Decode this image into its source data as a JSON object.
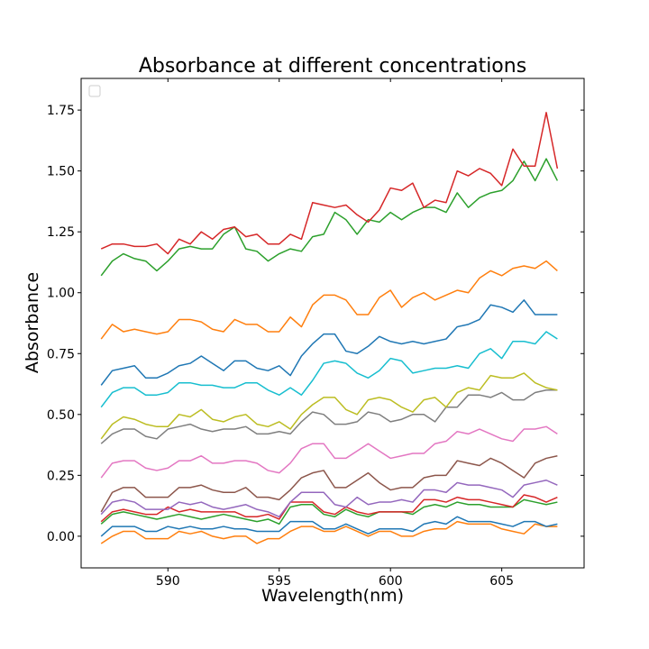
{
  "chart_data": {
    "type": "line",
    "title": "Absorbance at different concentrations",
    "xlabel": "Wavelength(nm)",
    "ylabel": "Absorbance",
    "xlim": [
      586.1,
      608.7
    ],
    "ylim": [
      -0.13,
      1.88
    ],
    "xticks": [
      590,
      595,
      600,
      605
    ],
    "yticks": [
      0.0,
      0.25,
      0.5,
      0.75,
      1.0,
      1.25,
      1.5,
      1.75
    ],
    "ytick_labels": [
      "0.00",
      "0.25",
      "0.50",
      "0.75",
      "1.00",
      "1.25",
      "1.50",
      "1.75"
    ],
    "legend": "top-left",
    "grid": false,
    "x": [
      587,
      587.5,
      588,
      588.5,
      589,
      589.5,
      590,
      590.5,
      591,
      591.5,
      592,
      592.5,
      593,
      593.5,
      594,
      594.5,
      595,
      595.5,
      596,
      596.5,
      597,
      597.5,
      598,
      598.5,
      599,
      599.5,
      600,
      600.5,
      601,
      601.5,
      602,
      602.5,
      603,
      603.5,
      604,
      604.5,
      605,
      605.5,
      606,
      606.5,
      607,
      607.5
    ],
    "series": [
      {
        "color": "#ff7f0e",
        "values": [
          -0.03,
          0.0,
          0.02,
          0.02,
          -0.01,
          -0.01,
          -0.01,
          0.02,
          0.01,
          0.02,
          0.0,
          -0.01,
          0.0,
          0.0,
          -0.03,
          -0.01,
          -0.01,
          0.02,
          0.04,
          0.04,
          0.02,
          0.02,
          0.04,
          0.02,
          0.0,
          0.02,
          0.02,
          0.0,
          0.0,
          0.02,
          0.03,
          0.03,
          0.06,
          0.05,
          0.05,
          0.05,
          0.03,
          0.02,
          0.01,
          0.05,
          0.04,
          0.04
        ]
      },
      {
        "color": "#1f77b4",
        "values": [
          0.0,
          0.04,
          0.04,
          0.04,
          0.02,
          0.02,
          0.04,
          0.03,
          0.04,
          0.03,
          0.03,
          0.04,
          0.03,
          0.03,
          0.02,
          0.02,
          0.02,
          0.06,
          0.06,
          0.06,
          0.03,
          0.03,
          0.05,
          0.03,
          0.01,
          0.03,
          0.03,
          0.03,
          0.02,
          0.05,
          0.06,
          0.05,
          0.08,
          0.06,
          0.06,
          0.06,
          0.05,
          0.04,
          0.06,
          0.06,
          0.04,
          0.05
        ]
      },
      {
        "color": "#2ca02c",
        "values": [
          0.05,
          0.09,
          0.1,
          0.09,
          0.08,
          0.07,
          0.08,
          0.09,
          0.08,
          0.07,
          0.08,
          0.09,
          0.08,
          0.07,
          0.06,
          0.07,
          0.05,
          0.12,
          0.13,
          0.13,
          0.09,
          0.08,
          0.11,
          0.09,
          0.08,
          0.1,
          0.1,
          0.1,
          0.09,
          0.12,
          0.13,
          0.12,
          0.14,
          0.13,
          0.13,
          0.12,
          0.12,
          0.12,
          0.15,
          0.14,
          0.13,
          0.14
        ]
      },
      {
        "color": "#d62728",
        "values": [
          0.06,
          0.1,
          0.11,
          0.1,
          0.09,
          0.09,
          0.12,
          0.1,
          0.11,
          0.1,
          0.1,
          0.1,
          0.1,
          0.08,
          0.08,
          0.09,
          0.07,
          0.14,
          0.14,
          0.14,
          0.1,
          0.09,
          0.12,
          0.1,
          0.09,
          0.1,
          0.1,
          0.1,
          0.1,
          0.15,
          0.15,
          0.14,
          0.16,
          0.15,
          0.15,
          0.14,
          0.13,
          0.12,
          0.17,
          0.16,
          0.14,
          0.16
        ]
      },
      {
        "color": "#9467bd",
        "values": [
          0.09,
          0.14,
          0.15,
          0.14,
          0.11,
          0.11,
          0.11,
          0.14,
          0.13,
          0.14,
          0.12,
          0.11,
          0.12,
          0.13,
          0.11,
          0.1,
          0.08,
          0.14,
          0.18,
          0.18,
          0.18,
          0.13,
          0.12,
          0.16,
          0.13,
          0.14,
          0.14,
          0.15,
          0.14,
          0.19,
          0.19,
          0.18,
          0.22,
          0.21,
          0.21,
          0.2,
          0.19,
          0.16,
          0.21,
          0.22,
          0.23,
          0.21
        ]
      },
      {
        "color": "#8c564b",
        "values": [
          0.1,
          0.18,
          0.2,
          0.2,
          0.16,
          0.16,
          0.16,
          0.2,
          0.2,
          0.21,
          0.19,
          0.18,
          0.18,
          0.2,
          0.16,
          0.16,
          0.15,
          0.19,
          0.24,
          0.26,
          0.27,
          0.2,
          0.2,
          0.23,
          0.26,
          0.22,
          0.19,
          0.2,
          0.2,
          0.24,
          0.25,
          0.25,
          0.31,
          0.3,
          0.29,
          0.32,
          0.3,
          0.27,
          0.24,
          0.3,
          0.32,
          0.33
        ]
      },
      {
        "color": "#e377c2",
        "values": [
          0.24,
          0.3,
          0.31,
          0.31,
          0.28,
          0.27,
          0.28,
          0.31,
          0.31,
          0.33,
          0.3,
          0.3,
          0.31,
          0.31,
          0.3,
          0.27,
          0.26,
          0.3,
          0.36,
          0.38,
          0.38,
          0.32,
          0.32,
          0.35,
          0.38,
          0.35,
          0.32,
          0.33,
          0.34,
          0.34,
          0.38,
          0.39,
          0.43,
          0.42,
          0.44,
          0.42,
          0.4,
          0.39,
          0.44,
          0.44,
          0.45,
          0.42
        ]
      },
      {
        "color": "#7f7f7f",
        "values": [
          0.38,
          0.42,
          0.44,
          0.44,
          0.41,
          0.4,
          0.44,
          0.45,
          0.46,
          0.44,
          0.43,
          0.44,
          0.44,
          0.45,
          0.42,
          0.42,
          0.43,
          0.42,
          0.47,
          0.51,
          0.5,
          0.46,
          0.46,
          0.47,
          0.51,
          0.5,
          0.47,
          0.48,
          0.5,
          0.5,
          0.47,
          0.53,
          0.53,
          0.58,
          0.58,
          0.57,
          0.59,
          0.56,
          0.56,
          0.59,
          0.6,
          0.6
        ]
      },
      {
        "color": "#bcbd22",
        "values": [
          0.4,
          0.46,
          0.49,
          0.48,
          0.46,
          0.45,
          0.45,
          0.5,
          0.49,
          0.52,
          0.48,
          0.47,
          0.49,
          0.5,
          0.46,
          0.45,
          0.47,
          0.44,
          0.5,
          0.54,
          0.57,
          0.57,
          0.52,
          0.5,
          0.56,
          0.57,
          0.56,
          0.53,
          0.51,
          0.56,
          0.57,
          0.53,
          0.59,
          0.61,
          0.6,
          0.66,
          0.65,
          0.65,
          0.67,
          0.63,
          0.61,
          0.6
        ]
      },
      {
        "color": "#17becf",
        "values": [
          0.53,
          0.59,
          0.61,
          0.61,
          0.58,
          0.58,
          0.59,
          0.63,
          0.63,
          0.62,
          0.62,
          0.61,
          0.61,
          0.63,
          0.63,
          0.6,
          0.58,
          0.61,
          0.58,
          0.64,
          0.71,
          0.72,
          0.71,
          0.67,
          0.65,
          0.68,
          0.73,
          0.72,
          0.67,
          0.68,
          0.69,
          0.69,
          0.7,
          0.69,
          0.75,
          0.77,
          0.73,
          0.8,
          0.8,
          0.79,
          0.84,
          0.81
        ]
      },
      {
        "color": "#1f77b4",
        "values": [
          0.62,
          0.68,
          0.69,
          0.7,
          0.65,
          0.65,
          0.67,
          0.7,
          0.71,
          0.74,
          0.71,
          0.68,
          0.72,
          0.72,
          0.69,
          0.68,
          0.7,
          0.66,
          0.74,
          0.79,
          0.83,
          0.83,
          0.76,
          0.75,
          0.78,
          0.82,
          0.8,
          0.79,
          0.8,
          0.79,
          0.8,
          0.81,
          0.86,
          0.87,
          0.89,
          0.95,
          0.94,
          0.92,
          0.97,
          0.91,
          0.91,
          0.91
        ]
      },
      {
        "color": "#ff7f0e",
        "values": [
          0.81,
          0.87,
          0.84,
          0.85,
          0.84,
          0.83,
          0.84,
          0.89,
          0.89,
          0.88,
          0.85,
          0.84,
          0.89,
          0.87,
          0.87,
          0.84,
          0.84,
          0.9,
          0.86,
          0.95,
          0.99,
          0.99,
          0.97,
          0.91,
          0.91,
          0.98,
          1.01,
          0.94,
          0.98,
          1.0,
          0.97,
          0.99,
          1.01,
          1.0,
          1.06,
          1.09,
          1.07,
          1.1,
          1.11,
          1.1,
          1.13,
          1.09
        ]
      },
      {
        "color": "#2ca02c",
        "values": [
          1.07,
          1.13,
          1.16,
          1.14,
          1.13,
          1.09,
          1.13,
          1.18,
          1.19,
          1.18,
          1.18,
          1.24,
          1.27,
          1.18,
          1.17,
          1.13,
          1.16,
          1.18,
          1.17,
          1.23,
          1.24,
          1.33,
          1.3,
          1.24,
          1.3,
          1.29,
          1.33,
          1.3,
          1.33,
          1.35,
          1.35,
          1.33,
          1.41,
          1.35,
          1.39,
          1.41,
          1.42,
          1.46,
          1.54,
          1.46,
          1.55,
          1.46
        ]
      },
      {
        "color": "#d62728",
        "values": [
          1.18,
          1.2,
          1.2,
          1.19,
          1.19,
          1.2,
          1.16,
          1.22,
          1.2,
          1.25,
          1.22,
          1.26,
          1.27,
          1.23,
          1.24,
          1.2,
          1.2,
          1.24,
          1.22,
          1.37,
          1.36,
          1.35,
          1.36,
          1.32,
          1.29,
          1.34,
          1.43,
          1.42,
          1.45,
          1.35,
          1.38,
          1.37,
          1.5,
          1.48,
          1.51,
          1.49,
          1.44,
          1.59,
          1.52,
          1.52,
          1.74,
          1.51
        ]
      }
    ]
  }
}
